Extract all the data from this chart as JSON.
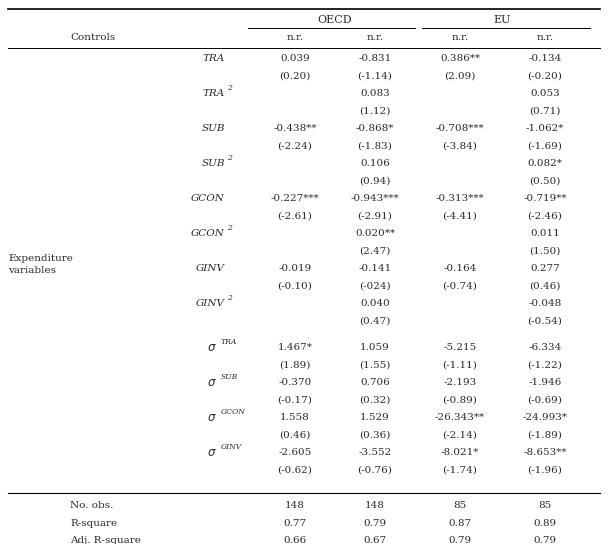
{
  "rows": [
    {
      "label": "TRA",
      "super": "",
      "sigma": false,
      "vals": [
        "0.039",
        "-0.831",
        "0.386**",
        "-0.134"
      ]
    },
    {
      "label": "",
      "super": "",
      "sigma": false,
      "vals": [
        "(0.20)",
        "(-1.14)",
        "(2.09)",
        "(-0.20)"
      ]
    },
    {
      "label": "TRA",
      "super": "2",
      "sigma": false,
      "vals": [
        "",
        "0.083",
        "",
        "0.053"
      ]
    },
    {
      "label": "",
      "super": "",
      "sigma": false,
      "vals": [
        "",
        "(1.12)",
        "",
        "(0.71)"
      ]
    },
    {
      "label": "SUB",
      "super": "",
      "sigma": false,
      "vals": [
        "-0.438**",
        "-0.868*",
        "-0.708***",
        "-1.062*"
      ]
    },
    {
      "label": "",
      "super": "",
      "sigma": false,
      "vals": [
        "(-2.24)",
        "(-1.83)",
        "(-3.84)",
        "(-1.69)"
      ]
    },
    {
      "label": "SUB",
      "super": "2",
      "sigma": false,
      "vals": [
        "",
        "0.106",
        "",
        "0.082*"
      ]
    },
    {
      "label": "",
      "super": "",
      "sigma": false,
      "vals": [
        "",
        "(0.94)",
        "",
        "(0.50)"
      ]
    },
    {
      "label": "GCON",
      "super": "",
      "sigma": false,
      "vals": [
        "-0.227***",
        "-0.943***",
        "-0.313***",
        "-0.719**"
      ]
    },
    {
      "label": "",
      "super": "",
      "sigma": false,
      "vals": [
        "(-2.61)",
        "(-2.91)",
        "(-4.41)",
        "(-2.46)"
      ]
    },
    {
      "label": "GCON",
      "super": "2",
      "sigma": false,
      "vals": [
        "",
        "0.020**",
        "",
        "0.011"
      ]
    },
    {
      "label": "",
      "super": "",
      "sigma": false,
      "vals": [
        "",
        "(2.47)",
        "",
        "(1.50)"
      ]
    },
    {
      "label": "GINV",
      "super": "",
      "sigma": false,
      "vals": [
        "-0.019",
        "-0.141",
        "-0.164",
        "0.277"
      ]
    },
    {
      "label": "",
      "super": "",
      "sigma": false,
      "vals": [
        "(-0.10)",
        "(-024)",
        "(-0.74)",
        "(0.46)"
      ]
    },
    {
      "label": "GINV",
      "super": "2",
      "sigma": false,
      "vals": [
        "",
        "0.040",
        "",
        "-0.048"
      ]
    },
    {
      "label": "",
      "super": "",
      "sigma": false,
      "vals": [
        "",
        "(0.47)",
        "",
        "(-0.54)"
      ]
    },
    {
      "label": "TRA",
      "super": "TRA",
      "sigma": true,
      "vals": [
        "1.467*",
        "1.059",
        "-5.215",
        "-6.334"
      ]
    },
    {
      "label": "",
      "super": "",
      "sigma": false,
      "vals": [
        "(1.89)",
        "(1.55)",
        "(-1.11)",
        "(-1.22)"
      ]
    },
    {
      "label": "SUB",
      "super": "SUB",
      "sigma": true,
      "vals": [
        "-0.370",
        "0.706",
        "-2.193",
        "-1.946"
      ]
    },
    {
      "label": "",
      "super": "",
      "sigma": false,
      "vals": [
        "(-0.17)",
        "(0.32)",
        "(-0.89)",
        "(-0.69)"
      ]
    },
    {
      "label": "GCON",
      "super": "GCON",
      "sigma": true,
      "vals": [
        "1.558",
        "1.529",
        "-26.343**",
        "-24.993*"
      ]
    },
    {
      "label": "",
      "super": "",
      "sigma": false,
      "vals": [
        "(0.46)",
        "(0.36)",
        "(-2.14)",
        "(-1.89)"
      ]
    },
    {
      "label": "GINV",
      "super": "GINV",
      "sigma": true,
      "vals": [
        "-2.605",
        "-3.552",
        "-8.021*",
        "-8.653**"
      ]
    },
    {
      "label": "",
      "super": "",
      "sigma": false,
      "vals": [
        "(-0.62)",
        "(-0.76)",
        "(-1.74)",
        "(-1.96)"
      ]
    }
  ],
  "footer_rows": [
    {
      "label": "No. obs.",
      "vals": [
        "148",
        "148",
        "85",
        "85"
      ]
    },
    {
      "label": "R-square",
      "vals": [
        "0.77",
        "0.79",
        "0.87",
        "0.89"
      ]
    },
    {
      "label": "Adj. R-square",
      "vals": [
        "0.66",
        "0.67",
        "0.79",
        "0.79"
      ]
    }
  ],
  "background_color": "#ffffff",
  "text_color": "#2b2b2b"
}
